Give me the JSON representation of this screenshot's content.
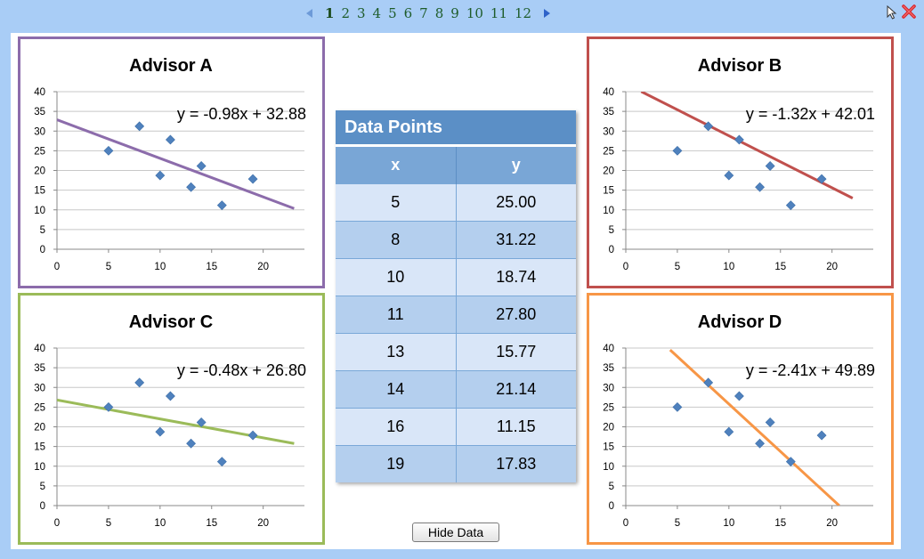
{
  "pager": {
    "pages": [
      "1",
      "2",
      "3",
      "4",
      "5",
      "6",
      "7",
      "8",
      "9",
      "10",
      "11",
      "12"
    ],
    "current": "1"
  },
  "table": {
    "title": "Data Points",
    "col_x": "x",
    "col_y": "y",
    "rows": [
      {
        "x": "5",
        "y": "25.00"
      },
      {
        "x": "8",
        "y": "31.22"
      },
      {
        "x": "10",
        "y": "18.74"
      },
      {
        "x": "11",
        "y": "27.80"
      },
      {
        "x": "13",
        "y": "15.77"
      },
      {
        "x": "14",
        "y": "21.14"
      },
      {
        "x": "16",
        "y": "11.15"
      },
      {
        "x": "19",
        "y": "17.83"
      }
    ]
  },
  "button": {
    "hide_data": "Hide Data"
  },
  "colors": {
    "advisor_a": "#8c6cab",
    "advisor_b": "#c0504d",
    "advisor_c": "#9bbb59",
    "advisor_d": "#f79646",
    "points": "#4f81bd"
  },
  "chart_data": [
    {
      "type": "scatter",
      "title": "Advisor A",
      "points": {
        "x": [
          5,
          8,
          10,
          11,
          13,
          14,
          16,
          19
        ],
        "y": [
          25.0,
          31.22,
          18.74,
          27.8,
          15.77,
          21.14,
          11.15,
          17.83
        ]
      },
      "trendline": {
        "equation": "y = -0.98x + 32.88",
        "slope": -0.98,
        "intercept": 32.88,
        "x_range": [
          0,
          23
        ]
      },
      "x_ticks": [
        "0",
        "5",
        "10",
        "15",
        "20"
      ],
      "y_ticks": [
        "0",
        "5",
        "10",
        "15",
        "20",
        "25",
        "30",
        "35",
        "40"
      ],
      "xlim": [
        0,
        24
      ],
      "ylim": [
        0,
        40
      ],
      "grid": "horizontal",
      "color": "#8c6cab"
    },
    {
      "type": "scatter",
      "title": "Advisor B",
      "points": {
        "x": [
          5,
          8,
          10,
          11,
          13,
          14,
          16,
          19
        ],
        "y": [
          25.0,
          31.22,
          18.74,
          27.8,
          15.77,
          21.14,
          11.15,
          17.83
        ]
      },
      "trendline": {
        "equation": "y = -1.32x + 42.01",
        "slope": -1.32,
        "intercept": 42.01,
        "x_range": [
          1.5,
          22
        ]
      },
      "x_ticks": [
        "0",
        "5",
        "10",
        "15",
        "20"
      ],
      "y_ticks": [
        "0",
        "5",
        "10",
        "15",
        "20",
        "25",
        "30",
        "35",
        "40"
      ],
      "xlim": [
        0,
        24
      ],
      "ylim": [
        0,
        40
      ],
      "grid": "horizontal",
      "color": "#c0504d"
    },
    {
      "type": "scatter",
      "title": "Advisor C",
      "points": {
        "x": [
          5,
          8,
          10,
          11,
          13,
          14,
          16,
          19
        ],
        "y": [
          25.0,
          31.22,
          18.74,
          27.8,
          15.77,
          21.14,
          11.15,
          17.83
        ]
      },
      "trendline": {
        "equation": "y = -0.48x + 26.80",
        "slope": -0.48,
        "intercept": 26.8,
        "x_range": [
          0,
          23
        ]
      },
      "x_ticks": [
        "0",
        "5",
        "10",
        "15",
        "20"
      ],
      "y_ticks": [
        "0",
        "5",
        "10",
        "15",
        "20",
        "25",
        "30",
        "35",
        "40"
      ],
      "xlim": [
        0,
        24
      ],
      "ylim": [
        0,
        40
      ],
      "grid": "horizontal",
      "color": "#9bbb59"
    },
    {
      "type": "scatter",
      "title": "Advisor D",
      "points": {
        "x": [
          5,
          8,
          10,
          11,
          13,
          14,
          16,
          19
        ],
        "y": [
          25.0,
          31.22,
          18.74,
          27.8,
          15.77,
          21.14,
          11.15,
          17.83
        ]
      },
      "trendline": {
        "equation": "y = -2.41x + 49.89",
        "slope": -2.41,
        "intercept": 49.89,
        "x_range": [
          4.3,
          20.7
        ]
      },
      "x_ticks": [
        "0",
        "5",
        "10",
        "15",
        "20"
      ],
      "y_ticks": [
        "0",
        "5",
        "10",
        "15",
        "20",
        "25",
        "30",
        "35",
        "40"
      ],
      "xlim": [
        0,
        24
      ],
      "ylim": [
        0,
        40
      ],
      "grid": "horizontal",
      "color": "#f79646"
    }
  ]
}
